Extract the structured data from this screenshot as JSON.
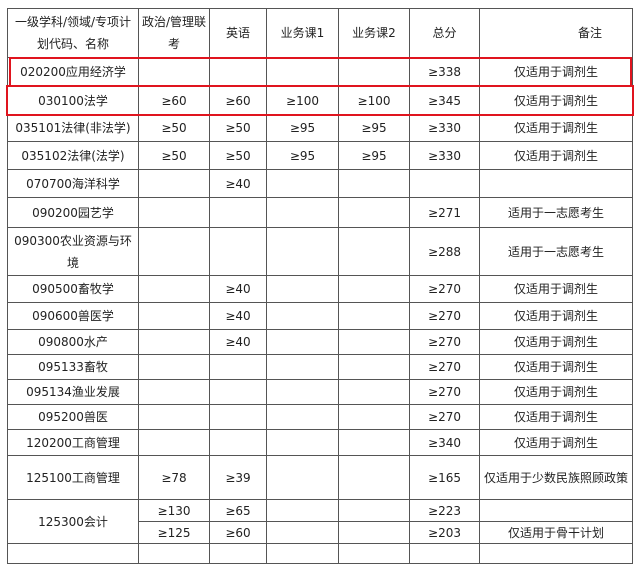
{
  "header": {
    "col1": "一级学科/领域/专项计划代码、名称",
    "col2": "政治/管理联考",
    "col3": "英语",
    "col4": "业务课1",
    "col5": "业务课2",
    "col6": "总分",
    "col7": "备注"
  },
  "rows": [
    {
      "name": "020200应用经济学",
      "pol": "",
      "eng": "",
      "c1": "",
      "c2": "",
      "total": "≥338",
      "note": "仅适用于调剂生",
      "highlight": true
    },
    {
      "name": "030100法学",
      "pol": "≥60",
      "eng": "≥60",
      "c1": "≥100",
      "c2": "≥100",
      "total": "≥345",
      "note": "仅适用于调剂生",
      "highlight": true
    },
    {
      "name": "035101法律(非法学)",
      "pol": "≥50",
      "eng": "≥50",
      "c1": "≥95",
      "c2": "≥95",
      "total": "≥330",
      "note": "仅适用于调剂生"
    },
    {
      "name": "035102法律(法学)",
      "pol": "≥50",
      "eng": "≥50",
      "c1": "≥95",
      "c2": "≥95",
      "total": "≥330",
      "note": "仅适用于调剂生"
    },
    {
      "name": "070700海洋科学",
      "pol": "",
      "eng": "≥40",
      "c1": "",
      "c2": "",
      "total": "",
      "note": ""
    },
    {
      "name": "090200园艺学",
      "pol": "",
      "eng": "",
      "c1": "",
      "c2": "",
      "total": "≥271",
      "note": "适用于一志愿考生"
    },
    {
      "name": "090300农业资源与环境",
      "pol": "",
      "eng": "",
      "c1": "",
      "c2": "",
      "total": "≥288",
      "note": "适用于一志愿考生"
    },
    {
      "name": "090500畜牧学",
      "pol": "",
      "eng": "≥40",
      "c1": "",
      "c2": "",
      "total": "≥270",
      "note": "仅适用于调剂生"
    },
    {
      "name": "090600兽医学",
      "pol": "",
      "eng": "≥40",
      "c1": "",
      "c2": "",
      "total": "≥270",
      "note": "仅适用于调剂生"
    },
    {
      "name": "090800水产",
      "pol": "",
      "eng": "≥40",
      "c1": "",
      "c2": "",
      "total": "≥270",
      "note": "仅适用于调剂生"
    },
    {
      "name": "095133畜牧",
      "pol": "",
      "eng": "",
      "c1": "",
      "c2": "",
      "total": "≥270",
      "note": "仅适用于调剂生"
    },
    {
      "name": "095134渔业发展",
      "pol": "",
      "eng": "",
      "c1": "",
      "c2": "",
      "total": "≥270",
      "note": "仅适用于调剂生"
    },
    {
      "name": "095200兽医",
      "pol": "",
      "eng": "",
      "c1": "",
      "c2": "",
      "total": "≥270",
      "note": "仅适用于调剂生"
    },
    {
      "name": "120200工商管理",
      "pol": "",
      "eng": "",
      "c1": "",
      "c2": "",
      "total": "≥340",
      "note": "仅适用于调剂生"
    },
    {
      "name": "125100工商管理",
      "pol": "≥78",
      "eng": "≥39",
      "c1": "",
      "c2": "",
      "total": "≥165",
      "note": "仅适用于少数民族照顾政策"
    }
  ],
  "accounting": {
    "name": "125300会计",
    "sub": [
      {
        "pol": "≥130",
        "eng": "≥65",
        "c1": "",
        "c2": "",
        "total": "≥223",
        "note": ""
      },
      {
        "pol": "≥125",
        "eng": "≥60",
        "c1": "",
        "c2": "",
        "total": "≥203",
        "note": "仅适用于骨干计划"
      }
    ]
  },
  "colors": {
    "highlight": "#e0141e",
    "border": "#555555"
  }
}
